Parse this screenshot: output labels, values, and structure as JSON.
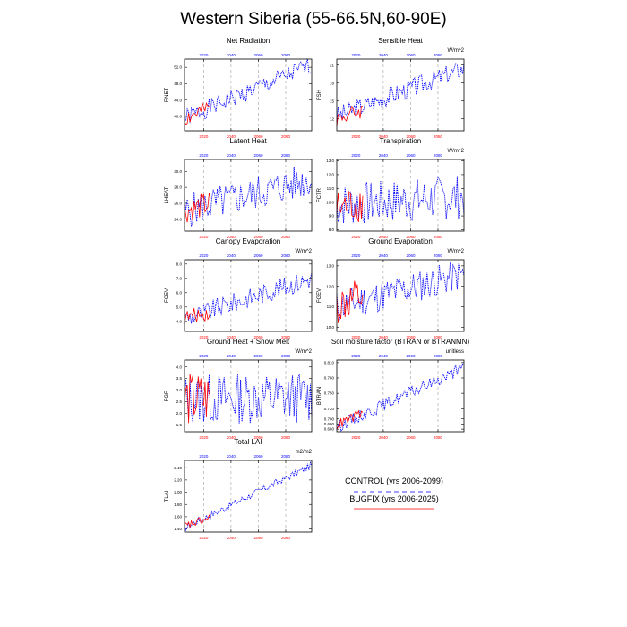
{
  "title": "Western Siberia (55-66.5N,60-90E)",
  "legend": {
    "control_label": "CONTROL (yrs 2006-2099)",
    "bugfix_label": "BUGFIX (yrs 2006-2025)",
    "control_color": "#0000ff",
    "bugfix_color": "#ff0000"
  },
  "colors": {
    "control": "#0000ff",
    "bugfix": "#ff0000",
    "grid": "#888888"
  },
  "x_ticks": [
    "2020",
    "2040",
    "2060",
    "2080"
  ],
  "chart_data": [
    {
      "type": "line",
      "title": "Net Radiation",
      "units": "",
      "ylabel": "RNET",
      "ylim": [
        36.5,
        54.0
      ],
      "yticks": [
        "36.0",
        "40.0",
        "44.0",
        "48.0",
        "52.0"
      ],
      "xlim": [
        2006,
        2099
      ],
      "series": [
        {
          "name": "CONTROL",
          "x": [
            2006,
            2099
          ],
          "y_start": 39.5,
          "y_end": 52.5,
          "amp": 2.2,
          "seed": 1
        },
        {
          "name": "BUGFIX",
          "x": [
            2006,
            2025
          ],
          "y_start": 39.5,
          "y_end": 42.0,
          "amp": 2.2,
          "seed": 2
        }
      ]
    },
    {
      "type": "line",
      "title": "Sensible Heat",
      "units": "W/m^2",
      "ylabel": "FSH",
      "ylim": [
        10.0,
        22.0
      ],
      "yticks": [
        "12",
        "15",
        "18",
        "21"
      ],
      "xlim": [
        2006,
        2099
      ],
      "series": [
        {
          "name": "CONTROL",
          "x": [
            2006,
            2099
          ],
          "y_start": 12.5,
          "y_end": 20.5,
          "amp": 1.6,
          "seed": 3
        },
        {
          "name": "BUGFIX",
          "x": [
            2006,
            2025
          ],
          "y_start": 12.0,
          "y_end": 13.5,
          "amp": 1.4,
          "seed": 4
        }
      ]
    },
    {
      "type": "line",
      "title": "Latent Heat",
      "units": "",
      "ylabel": "LHEAT",
      "ylim": [
        22.5,
        31.5
      ],
      "yticks": [
        "24.0",
        "26.0",
        "28.0",
        "30.0"
      ],
      "xlim": [
        2006,
        2099
      ],
      "series": [
        {
          "name": "CONTROL",
          "x": [
            2006,
            2099
          ],
          "y_start": 25.0,
          "y_end": 29.0,
          "amp": 2.2,
          "seed": 5
        },
        {
          "name": "BUGFIX",
          "x": [
            2006,
            2025
          ],
          "y_start": 25.0,
          "y_end": 26.0,
          "amp": 1.6,
          "seed": 6
        }
      ]
    },
    {
      "type": "line",
      "title": "Transpiration",
      "units": "W/m^2",
      "ylabel": "FCTR",
      "ylim": [
        7.9,
        13.1
      ],
      "yticks": [
        "8.0",
        "9.0",
        "10.0",
        "11.0",
        "12.0",
        "13.0"
      ],
      "xlim": [
        2006,
        2099
      ],
      "series": [
        {
          "name": "CONTROL",
          "x": [
            2006,
            2099
          ],
          "y_start": 9.8,
          "y_end": 10.4,
          "amp": 1.6,
          "seed": 7
        },
        {
          "name": "BUGFIX",
          "x": [
            2006,
            2025
          ],
          "y_start": 9.5,
          "y_end": 10.0,
          "amp": 1.4,
          "seed": 8
        }
      ]
    },
    {
      "type": "line",
      "title": "Canopy Evaporation",
      "units": "W/m^2",
      "ylabel": "FCEV",
      "ylim": [
        3.3,
        8.3
      ],
      "yticks": [
        "4.0",
        "5.0",
        "6.0",
        "7.0",
        "8.0"
      ],
      "xlim": [
        2006,
        2099
      ],
      "series": [
        {
          "name": "CONTROL",
          "x": [
            2006,
            2099
          ],
          "y_start": 4.2,
          "y_end": 7.0,
          "amp": 0.7,
          "seed": 9
        },
        {
          "name": "BUGFIX",
          "x": [
            2006,
            2025
          ],
          "y_start": 4.3,
          "y_end": 4.6,
          "amp": 0.5,
          "seed": 10
        }
      ]
    },
    {
      "type": "line",
      "title": "Ground Evaporation",
      "units": "W/m^2",
      "ylabel": "FGEV",
      "ylim": [
        9.8,
        13.3
      ],
      "yticks": [
        "10.0",
        "11.0",
        "12.0",
        "13.0"
      ],
      "xlim": [
        2006,
        2099
      ],
      "series": [
        {
          "name": "CONTROL",
          "x": [
            2006,
            2099
          ],
          "y_start": 11.0,
          "y_end": 12.6,
          "amp": 0.8,
          "seed": 11
        },
        {
          "name": "BUGFIX",
          "x": [
            2006,
            2025
          ],
          "y_start": 11.0,
          "y_end": 11.4,
          "amp": 1.0,
          "seed": 12
        }
      ]
    },
    {
      "type": "line",
      "title": "Ground Heat + Snow Melt",
      "units": "W/m^2",
      "ylabel": "FGR",
      "ylim": [
        1.2,
        4.3
      ],
      "yticks": [
        "1.5",
        "2.0",
        "2.5",
        "3.0",
        "3.5",
        "4.0"
      ],
      "xlim": [
        2006,
        2099
      ],
      "series": [
        {
          "name": "CONTROL",
          "x": [
            2006,
            2099
          ],
          "y_start": 2.6,
          "y_end": 2.7,
          "amp": 1.1,
          "seed": 13
        },
        {
          "name": "BUGFIX",
          "x": [
            2006,
            2025
          ],
          "y_start": 2.6,
          "y_end": 2.7,
          "amp": 1.2,
          "seed": 14
        }
      ]
    },
    {
      "type": "line",
      "title": "Soil moisture factor (BTRAN or BTRANMN)",
      "units": "unitless",
      "ylabel": "BTRAN",
      "ylim": [
        0.675,
        0.815
      ],
      "yticks": [
        "0.680",
        "0.690",
        "0.700",
        "0.720",
        "0.750",
        "0.780",
        "0.810"
      ],
      "xlim": [
        2006,
        2099
      ],
      "series": [
        {
          "name": "CONTROL",
          "x": [
            2006,
            2099
          ],
          "y_start": 0.685,
          "y_end": 0.8,
          "amp": 0.012,
          "seed": 15
        },
        {
          "name": "BUGFIX",
          "x": [
            2006,
            2025
          ],
          "y_start": 0.688,
          "y_end": 0.712,
          "amp": 0.01,
          "seed": 16
        }
      ]
    },
    {
      "type": "line",
      "title": "Total LAI",
      "units": "m2/m2",
      "ylabel": "TLAI",
      "ylim": [
        1.35,
        2.52
      ],
      "yticks": [
        "1.40",
        "1.60",
        "1.80",
        "2.00",
        "2.20",
        "2.40"
      ],
      "xlim": [
        2006,
        2099
      ],
      "series": [
        {
          "name": "CONTROL",
          "x": [
            2006,
            2099
          ],
          "y_start": 1.42,
          "y_end": 2.44,
          "amp": 0.06,
          "seed": 17
        },
        {
          "name": "BUGFIX",
          "x": [
            2006,
            2025
          ],
          "y_start": 1.44,
          "y_end": 1.58,
          "amp": 0.07,
          "seed": 18
        }
      ]
    }
  ]
}
